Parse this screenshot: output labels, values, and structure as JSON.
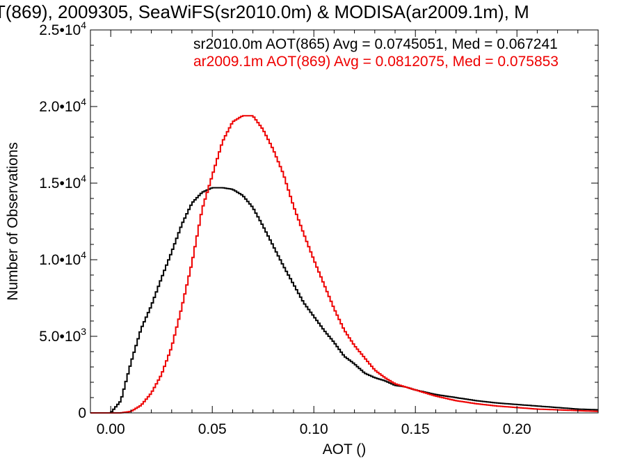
{
  "chart_data": {
    "type": "line",
    "title": "T(869), 2009305, SeaWiFS(sr2010.0m) & MODISA(ar2009.1m), M",
    "xlabel": "AOT ()",
    "ylabel": "Number of Observations",
    "xlim": [
      -0.01,
      0.24
    ],
    "ylim": [
      0,
      25000
    ],
    "x_ticks": [
      {
        "value": 0.0,
        "label": "0.00"
      },
      {
        "value": 0.05,
        "label": "0.05"
      },
      {
        "value": 0.1,
        "label": "0.10"
      },
      {
        "value": 0.15,
        "label": "0.15"
      },
      {
        "value": 0.2,
        "label": "0.20"
      }
    ],
    "y_ticks": [
      {
        "value": 0,
        "mantissa": "0",
        "exponent": ""
      },
      {
        "value": 5000,
        "mantissa": "5.0•10",
        "exponent": "3"
      },
      {
        "value": 10000,
        "mantissa": "1.0•10",
        "exponent": "4"
      },
      {
        "value": 15000,
        "mantissa": "1.5•10",
        "exponent": "4"
      },
      {
        "value": 20000,
        "mantissa": "2.0•10",
        "exponent": "4"
      },
      {
        "value": 25000,
        "mantissa": "2.5•10",
        "exponent": "4"
      }
    ],
    "grid": false,
    "step": true,
    "legend": [
      {
        "text": "sr2010.0m AOT(865) Avg = 0.0745051, Med = 0.067241",
        "color": "#000000"
      },
      {
        "text": "ar2009.1m AOT(869) Avg = 0.0812075, Med = 0.075853",
        "color": "#ee0000"
      }
    ],
    "series": [
      {
        "color": "#000000",
        "x": [
          -0.01,
          0.0,
          0.005,
          0.01,
          0.015,
          0.02,
          0.025,
          0.03,
          0.035,
          0.04,
          0.045,
          0.05,
          0.055,
          0.06,
          0.065,
          0.07,
          0.075,
          0.08,
          0.085,
          0.09,
          0.095,
          0.1,
          0.105,
          0.11,
          0.115,
          0.12,
          0.125,
          0.13,
          0.135,
          0.14,
          0.145,
          0.15,
          0.155,
          0.16,
          0.17,
          0.18,
          0.19,
          0.2,
          0.21,
          0.22,
          0.23,
          0.24
        ],
        "y": [
          0,
          0,
          800,
          3300,
          5500,
          7000,
          8800,
          10500,
          12300,
          13700,
          14400,
          14700,
          14700,
          14600,
          14200,
          13400,
          12200,
          10900,
          9600,
          8400,
          7200,
          6300,
          5400,
          4600,
          3700,
          3200,
          2600,
          2300,
          2100,
          1800,
          1700,
          1500,
          1350,
          1200,
          1000,
          800,
          650,
          550,
          450,
          350,
          250,
          200
        ]
      },
      {
        "color": "#ee0000",
        "x": [
          -0.01,
          0.0,
          0.005,
          0.01,
          0.015,
          0.02,
          0.025,
          0.03,
          0.035,
          0.04,
          0.045,
          0.05,
          0.055,
          0.06,
          0.065,
          0.07,
          0.075,
          0.08,
          0.085,
          0.09,
          0.095,
          0.1,
          0.105,
          0.11,
          0.115,
          0.12,
          0.125,
          0.13,
          0.135,
          0.14,
          0.145,
          0.15,
          0.155,
          0.16,
          0.17,
          0.18,
          0.19,
          0.2,
          0.21,
          0.22,
          0.23,
          0.24
        ],
        "y": [
          0,
          0,
          0,
          100,
          500,
          1300,
          2500,
          4300,
          6900,
          9800,
          13300,
          15500,
          17700,
          19000,
          19400,
          19400,
          18500,
          17200,
          15600,
          13500,
          11700,
          10000,
          8400,
          6800,
          5400,
          4400,
          3600,
          2800,
          2300,
          1900,
          1700,
          1500,
          1300,
          1100,
          800,
          600,
          450,
          350,
          250,
          200,
          150,
          100
        ]
      }
    ]
  }
}
